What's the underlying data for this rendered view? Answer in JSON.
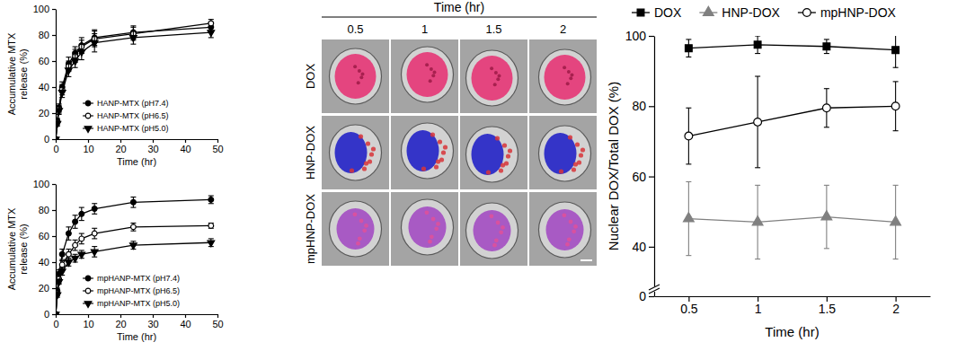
{
  "chart_data": [
    {
      "type": "line",
      "x_label": "Time (hr)",
      "y_label": "Accumulative MTX release (%)",
      "x": [
        0,
        0.5,
        1,
        2,
        4,
        6,
        8,
        12,
        24,
        48
      ],
      "xlim": [
        0,
        50
      ],
      "xticks": [
        0,
        10,
        20,
        30,
        40,
        50
      ],
      "ylim": [
        0,
        100
      ],
      "yticks": [
        0,
        20,
        40,
        60,
        80,
        100
      ],
      "legend": "lower right",
      "series": [
        {
          "name": "HANP-MTX (pH7.4)",
          "color": "#000000",
          "marker": "circle",
          "values": [
            0,
            14,
            24,
            40,
            58,
            66,
            72,
            78,
            82,
            86
          ],
          "errors": [
            0,
            2,
            3,
            4,
            5,
            5,
            6,
            6,
            5,
            4
          ]
        },
        {
          "name": "HANP-MTX (pH6.5)",
          "color": "#000000",
          "marker": "open-circle",
          "values": [
            0,
            13,
            23,
            38,
            56,
            64,
            71,
            77,
            81,
            89
          ],
          "errors": [
            0,
            2,
            3,
            4,
            4,
            5,
            5,
            6,
            5,
            3
          ]
        },
        {
          "name": "HANP-MTX (pH5.0)",
          "color": "#000000",
          "marker": "triangle-down",
          "values": [
            0,
            12,
            22,
            36,
            53,
            60,
            67,
            74,
            78,
            82
          ],
          "errors": [
            0,
            2,
            3,
            4,
            5,
            5,
            6,
            7,
            5,
            4
          ]
        }
      ]
    },
    {
      "type": "line",
      "x_label": "Time (hr)",
      "y_label": "Accumulative MTX release (%)",
      "x": [
        0,
        0.5,
        1,
        2,
        4,
        6,
        8,
        12,
        24,
        48
      ],
      "xlim": [
        0,
        50
      ],
      "xticks": [
        0,
        10,
        20,
        30,
        40,
        50
      ],
      "ylim": [
        0,
        100
      ],
      "yticks": [
        0,
        20,
        40,
        60,
        80,
        100
      ],
      "legend": "lower right",
      "series": [
        {
          "name": "mpHANP-MTX (pH7.4)",
          "color": "#000000",
          "marker": "circle",
          "values": [
            0,
            18,
            31,
            46,
            62,
            71,
            77,
            81,
            86,
            88
          ],
          "errors": [
            0,
            2,
            3,
            4,
            5,
            5,
            5,
            4,
            4,
            3
          ]
        },
        {
          "name": "mpHANP-MTX (pH6.5)",
          "color": "#000000",
          "marker": "open-circle",
          "values": [
            0,
            16,
            27,
            38,
            46,
            53,
            58,
            62,
            67,
            68
          ],
          "errors": [
            0,
            2,
            3,
            3,
            4,
            4,
            4,
            4,
            3,
            2
          ]
        },
        {
          "name": "mpHANP-MTX (pH5.0)",
          "color": "#000000",
          "marker": "triangle-down",
          "values": [
            0,
            15,
            25,
            33,
            40,
            43,
            46,
            48,
            53,
            55
          ],
          "errors": [
            0,
            2,
            2,
            3,
            3,
            3,
            3,
            4,
            3,
            3
          ]
        }
      ]
    },
    {
      "type": "image",
      "title": "Time (hr)",
      "categories": [
        "0.5",
        "1",
        "1.5",
        "2"
      ],
      "rows": [
        "DOX",
        "HNP-DOX",
        "mpHNP-DOX"
      ]
    },
    {
      "type": "line",
      "x_label": "Time (hr)",
      "y_label": "Nuclear DOX/Total DOX (%)",
      "x": [
        0.5,
        1,
        1.5,
        2
      ],
      "xlim": [
        0.25,
        2.25
      ],
      "xticks": [
        0.5,
        1,
        1.5,
        2
      ],
      "ylim": [
        0,
        100
      ],
      "yticks": [
        0,
        40,
        60,
        80,
        100
      ],
      "legend": "top",
      "series": [
        {
          "name": "DOX",
          "color": "#000000",
          "marker": "square",
          "values": [
            96.5,
            97.5,
            97,
            96
          ],
          "errors": [
            2.5,
            2.5,
            2,
            5
          ]
        },
        {
          "name": "HNP-DOX",
          "color": "#808080",
          "marker": "triangle",
          "values": [
            48,
            47,
            48.5,
            47
          ],
          "errors": [
            10.5,
            10.5,
            9,
            10.5
          ]
        },
        {
          "name": "mpHNP-DOX",
          "color": "#000000",
          "marker": "open-circle",
          "values": [
            71.5,
            75.5,
            79.5,
            80
          ],
          "errors": [
            8,
            13,
            5.5,
            7
          ]
        }
      ]
    }
  ]
}
